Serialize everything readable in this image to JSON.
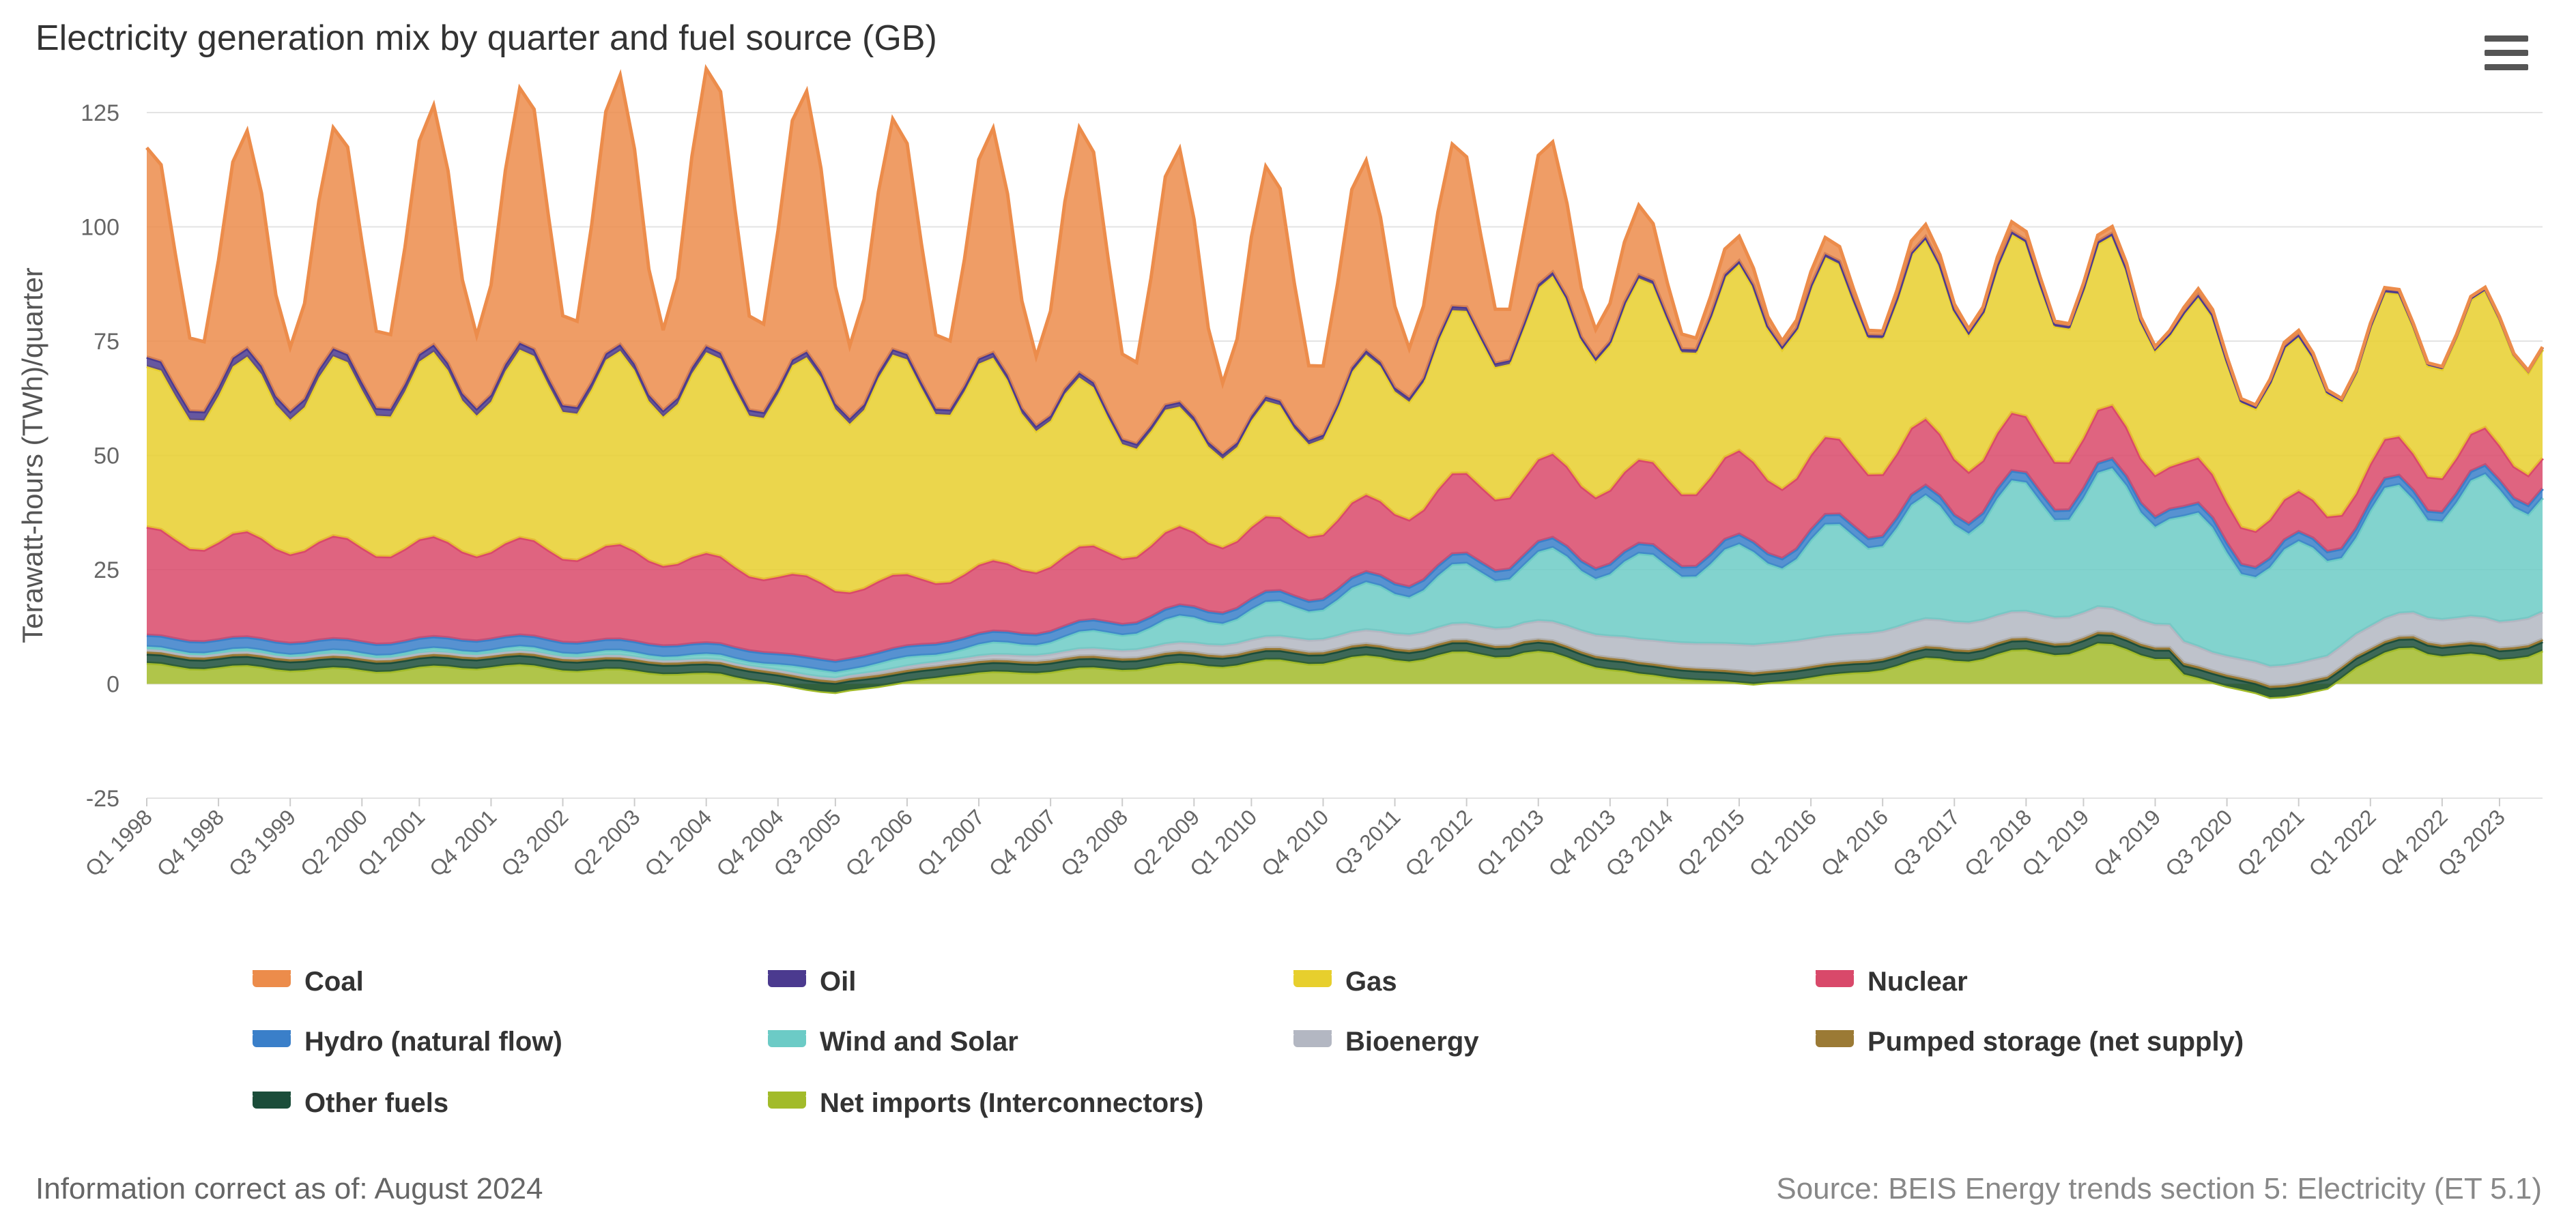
{
  "header": {
    "title": "Electricity generation mix by quarter and fuel source (GB)",
    "menu_icon": "hamburger-menu-icon"
  },
  "footer": {
    "info": "Information correct as of: August 2024",
    "source": "Source: BEIS Energy trends section 5: Electricity (ET 5.1)"
  },
  "chart_data": {
    "type": "area",
    "stacked": true,
    "title": "Electricity generation mix by quarter and fuel source (GB)",
    "ylabel": "Terawatt-hours (TWh)/quarter",
    "xlabel": "",
    "ylim": [
      -25,
      125
    ],
    "yticks": [
      -25,
      0,
      25,
      50,
      75,
      100,
      125
    ],
    "grid": "horizontal",
    "legend_position": "bottom",
    "x_start": "Q1 1998",
    "x_end": "Q4 2023",
    "xtick_labels": [
      "Q1 1998",
      "Q4 1998",
      "Q3 1999",
      "Q2 2000",
      "Q1 2001",
      "Q4 2001",
      "Q3 2002",
      "Q2 2003",
      "Q1 2004",
      "Q4 2004",
      "Q3 2005",
      "Q2 2006",
      "Q1 2007",
      "Q4 2007",
      "Q3 2008",
      "Q2 2009",
      "Q1 2010",
      "Q4 2010",
      "Q3 2011",
      "Q2 2012",
      "Q1 2013",
      "Q4 2013",
      "Q3 2014",
      "Q2 2015",
      "Q1 2016",
      "Q4 2016",
      "Q3 2017",
      "Q2 2018",
      "Q1 2019",
      "Q4 2019",
      "Q3 2020",
      "Q2 2021",
      "Q1 2022",
      "Q4 2022",
      "Q3 2023"
    ],
    "legend": [
      "Coal",
      "Oil",
      "Gas",
      "Nuclear",
      "Hydro (natural flow)",
      "Wind and Solar",
      "Bioenergy",
      "Pumped storage (net supply)",
      "Other fuels",
      "Net imports (Interconnectors)"
    ],
    "colors": {
      "Coal": "#ec8c4b",
      "Oil": "#4b3a8f",
      "Gas": "#e7cf2d",
      "Nuclear": "#d9496a",
      "Hydro (natural flow)": "#3a7fc9",
      "Wind and Solar": "#6ccbc6",
      "Bioenergy": "#b3b7c2",
      "Pumped storage (net supply)": "#9b7a35",
      "Other fuels": "#1b4d3a",
      "Net imports (Interconnectors)": "#a2bb2a"
    },
    "stack_order_bottom_to_top": [
      "Net imports (Interconnectors)",
      "Other fuels",
      "Pumped storage (net supply)",
      "Bioenergy",
      "Wind and Solar",
      "Hydro (natural flow)",
      "Nuclear",
      "Gas",
      "Oil",
      "Coal"
    ],
    "anchors": {
      "Net imports (Interconnectors)": [
        [
          0,
          4
        ],
        [
          16,
          3
        ],
        [
          24,
          4
        ],
        [
          40,
          2
        ],
        [
          48,
          -2
        ],
        [
          56,
          2
        ],
        [
          72,
          4
        ],
        [
          90,
          6
        ],
        [
          96,
          7
        ],
        [
          100,
          5
        ],
        [
          104,
          2
        ],
        [
          108,
          1
        ],
        [
          112,
          0
        ],
        [
          118,
          2
        ],
        [
          120,
          3
        ],
        [
          124,
          5
        ],
        [
          128,
          6
        ],
        [
          136,
          8
        ],
        [
          141,
          6
        ],
        [
          142,
          2
        ],
        [
          148,
          -3
        ],
        [
          152,
          -1
        ],
        [
          154,
          4
        ],
        [
          158,
          8
        ],
        [
          164,
          5
        ],
        [
          167,
          8
        ]
      ],
      "Other fuels": [
        [
          0,
          2
        ],
        [
          167,
          2
        ]
      ],
      "Pumped storage (net supply)": [
        [
          0,
          0.5
        ],
        [
          167,
          0.5
        ]
      ],
      "Bioenergy": [
        [
          0,
          0.5
        ],
        [
          40,
          0.5
        ],
        [
          48,
          0.6
        ],
        [
          56,
          1
        ],
        [
          72,
          2
        ],
        [
          84,
          3
        ],
        [
          96,
          4
        ],
        [
          104,
          5
        ],
        [
          112,
          6
        ],
        [
          120,
          6
        ],
        [
          128,
          6
        ],
        [
          136,
          5.5
        ],
        [
          141,
          5
        ],
        [
          144,
          4
        ],
        [
          152,
          4.5
        ],
        [
          160,
          5.5
        ],
        [
          167,
          6
        ]
      ],
      "Wind and Solar": [
        [
          0,
          0.5
        ],
        [
          24,
          0.8
        ],
        [
          40,
          1
        ],
        [
          48,
          1.5
        ],
        [
          56,
          2
        ],
        [
          64,
          3
        ],
        [
          72,
          5
        ],
        [
          80,
          7
        ],
        [
          88,
          10
        ],
        [
          96,
          13
        ],
        [
          104,
          16
        ],
        [
          112,
          19
        ],
        [
          120,
          22
        ],
        [
          128,
          24
        ],
        [
          136,
          26
        ],
        [
          142,
          26
        ],
        [
          146,
          22
        ],
        [
          152,
          23
        ],
        [
          158,
          25
        ],
        [
          164,
          27
        ],
        [
          167,
          28
        ]
      ],
      "Hydro (natural flow)": [
        [
          0,
          2.5
        ],
        [
          167,
          2
        ]
      ],
      "Nuclear": [
        [
          0,
          22
        ],
        [
          12,
          21
        ],
        [
          24,
          20
        ],
        [
          36,
          19
        ],
        [
          48,
          16
        ],
        [
          56,
          14
        ],
        [
          64,
          15
        ],
        [
          72,
          16
        ],
        [
          80,
          15
        ],
        [
          88,
          16
        ],
        [
          96,
          17
        ],
        [
          104,
          17
        ],
        [
          112,
          17
        ],
        [
          120,
          15
        ],
        [
          128,
          12
        ],
        [
          136,
          11
        ],
        [
          144,
          9
        ],
        [
          152,
          8
        ],
        [
          160,
          8
        ],
        [
          167,
          7
        ]
      ],
      "Gas": [
        [
          0,
          31
        ],
        [
          8,
          34
        ],
        [
          16,
          35
        ],
        [
          24,
          36
        ],
        [
          32,
          37
        ],
        [
          40,
          39
        ],
        [
          48,
          43
        ],
        [
          56,
          42
        ],
        [
          64,
          34
        ],
        [
          72,
          23
        ],
        [
          80,
          22
        ],
        [
          88,
          30
        ],
        [
          96,
          34
        ],
        [
          104,
          35
        ],
        [
          112,
          36
        ],
        [
          120,
          34
        ],
        [
          128,
          35
        ],
        [
          136,
          33
        ],
        [
          142,
          31
        ],
        [
          146,
          31
        ],
        [
          152,
          29
        ],
        [
          158,
          28
        ],
        [
          164,
          26
        ],
        [
          167,
          26
        ]
      ],
      "Oil": [
        [
          0,
          2
        ],
        [
          24,
          1.5
        ],
        [
          48,
          1.2
        ],
        [
          72,
          1
        ],
        [
          96,
          0.8
        ],
        [
          120,
          0.6
        ],
        [
          144,
          0.5
        ],
        [
          167,
          0.5
        ]
      ],
      "Coal": [
        [
          0,
          30
        ],
        [
          16,
          32
        ],
        [
          24,
          36
        ],
        [
          32,
          38
        ],
        [
          40,
          40
        ],
        [
          48,
          36
        ],
        [
          56,
          30
        ],
        [
          64,
          35
        ],
        [
          72,
          36
        ],
        [
          80,
          32
        ],
        [
          88,
          24
        ],
        [
          96,
          22
        ],
        [
          100,
          15
        ],
        [
          104,
          10
        ],
        [
          108,
          5
        ],
        [
          112,
          3
        ],
        [
          120,
          2
        ],
        [
          128,
          1.5
        ],
        [
          136,
          1
        ],
        [
          144,
          0.8
        ],
        [
          152,
          0.5
        ],
        [
          160,
          0.2
        ],
        [
          167,
          0.1
        ]
      ]
    },
    "seasonal_swing": {
      "Coal": 0.55,
      "Gas": 0.14,
      "Nuclear": 0.08,
      "Wind and Solar": 0.18,
      "Net imports (Interconnectors)": 0.15
    },
    "points_per_year": 6.5
  }
}
